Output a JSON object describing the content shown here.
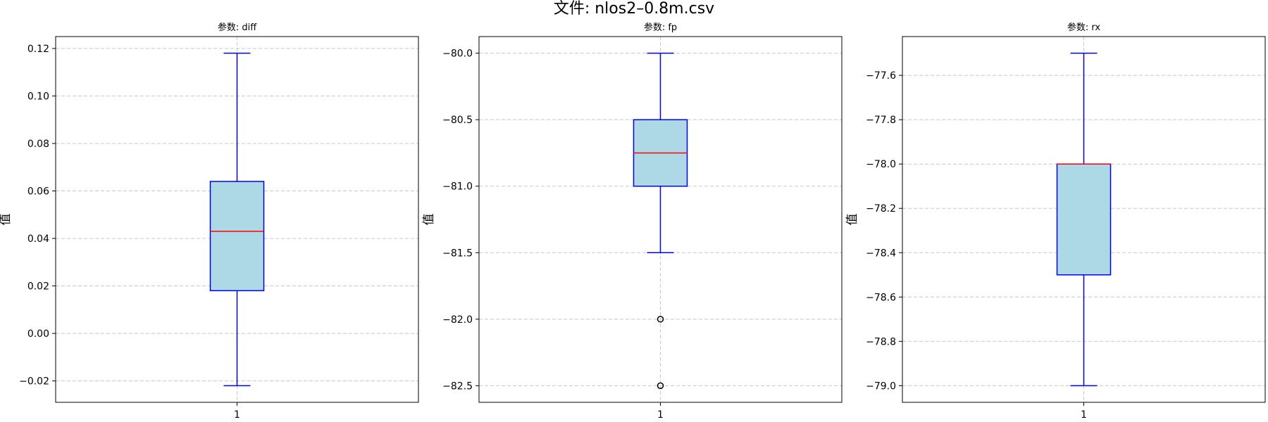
{
  "figure": {
    "title": "文件: nlos2–0.8m.csv"
  },
  "style": {
    "box_fill": "#add8e6",
    "box_edge": "#0000ff",
    "median": "#ff0000",
    "grid": "#c8c8c8",
    "outlier": "#000000"
  },
  "chart_data": [
    {
      "type": "box",
      "title": "参数: diff",
      "ylabel": "值",
      "xlabel": "",
      "categories": [
        "1"
      ],
      "ylim": [
        -0.029,
        0.125
      ],
      "yticks": [
        -0.02,
        0.0,
        0.02,
        0.04,
        0.06,
        0.08,
        0.1,
        0.12
      ],
      "ytick_labels": [
        "−0.02",
        "0.00",
        "0.02",
        "0.04",
        "0.06",
        "0.08",
        "0.10",
        "0.12"
      ],
      "grid": true,
      "box": {
        "whisker_low": -0.022,
        "q1": 0.018,
        "median": 0.043,
        "q3": 0.064,
        "whisker_high": 0.118,
        "outliers": []
      }
    },
    {
      "type": "box",
      "title": "参数: fp",
      "ylabel": "值",
      "xlabel": "",
      "categories": [
        "1"
      ],
      "ylim": [
        -82.625,
        -79.875
      ],
      "yticks": [
        -82.5,
        -82.0,
        -81.5,
        -81.0,
        -80.5,
        -80.0
      ],
      "ytick_labels": [
        "−82.5",
        "−82.0",
        "−81.5",
        "−81.0",
        "−80.5",
        "−80.0"
      ],
      "grid": true,
      "box": {
        "whisker_low": -81.5,
        "q1": -81.0,
        "median": -80.75,
        "q3": -80.5,
        "whisker_high": -80.0,
        "outliers": [
          -82.0,
          -82.5
        ]
      }
    },
    {
      "type": "box",
      "title": "参数: rx",
      "ylabel": "值",
      "xlabel": "",
      "categories": [
        "1"
      ],
      "ylim": [
        -79.075,
        -77.425
      ],
      "yticks": [
        -79.0,
        -78.8,
        -78.6,
        -78.4,
        -78.2,
        -78.0,
        -77.8,
        -77.6
      ],
      "ytick_labels": [
        "−79.0",
        "−78.8",
        "−78.6",
        "−78.4",
        "−78.2",
        "−78.0",
        "−77.8",
        "−77.6"
      ],
      "grid": true,
      "box": {
        "whisker_low": -79.0,
        "q1": -78.5,
        "median": -78.0,
        "q3": -78.0,
        "whisker_high": -77.5,
        "outliers": []
      }
    }
  ]
}
